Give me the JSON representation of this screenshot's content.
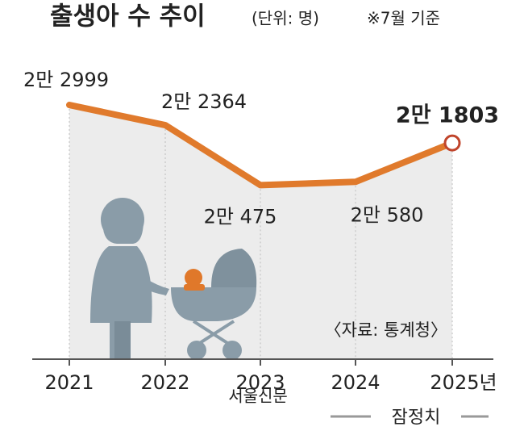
{
  "chart_data": {
    "type": "line",
    "title": "출생아 수 추이",
    "subtitle": "(단위: 명)",
    "note": "※7월 기준",
    "categories": [
      "2021",
      "2022",
      "2023",
      "2024",
      "2025년"
    ],
    "series": [
      {
        "name": "출생아 수",
        "color": "#e07a2c",
        "values": [
          22999,
          22364,
          20475,
          20580,
          21803
        ],
        "value_labels": [
          "2만 2999",
          "2만 2364",
          "2만 475",
          "2만 580",
          "2만 1803"
        ]
      }
    ],
    "ylim": [
      15000,
      23000
    ],
    "source": "〈자료: 통계청〉",
    "annotation": "잠정치",
    "watermark": "서울신문"
  }
}
